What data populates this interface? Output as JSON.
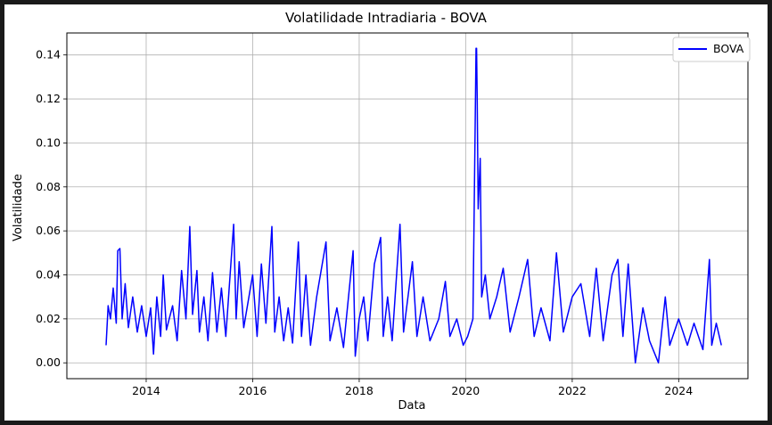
{
  "chart_data": {
    "type": "line",
    "title": "Volatilidade Intradiaria - BOVA",
    "xlabel": "Data",
    "ylabel": "Volatilidade",
    "x_axis": "date",
    "xlim": [
      "2012-07-06",
      "2025-04-20"
    ],
    "ylim": [
      -0.0072,
      0.15
    ],
    "x_ticks": [
      "2014",
      "2016",
      "2018",
      "2020",
      "2022",
      "2024"
    ],
    "y_ticks": [
      "0.00",
      "0.02",
      "0.04",
      "0.06",
      "0.08",
      "0.10",
      "0.12",
      "0.14"
    ],
    "grid": true,
    "legend": {
      "position": "top-right",
      "entries": [
        "BOVA"
      ]
    },
    "series": [
      {
        "name": "BOVA",
        "color": "#0000ff",
        "points": [
          [
            "2013-04-01",
            0.008
          ],
          [
            "2013-04-15",
            0.026
          ],
          [
            "2013-05-01",
            0.02
          ],
          [
            "2013-05-20",
            0.034
          ],
          [
            "2013-06-10",
            0.018
          ],
          [
            "2013-06-20",
            0.051
          ],
          [
            "2013-07-05",
            0.052
          ],
          [
            "2013-07-20",
            0.02
          ],
          [
            "2013-08-10",
            0.036
          ],
          [
            "2013-09-01",
            0.016
          ],
          [
            "2013-10-01",
            0.03
          ],
          [
            "2013-11-01",
            0.014
          ],
          [
            "2013-12-01",
            0.026
          ],
          [
            "2014-01-01",
            0.012
          ],
          [
            "2014-02-01",
            0.025
          ],
          [
            "2014-02-20",
            0.004
          ],
          [
            "2014-03-15",
            0.03
          ],
          [
            "2014-04-10",
            0.012
          ],
          [
            "2014-04-28",
            0.04
          ],
          [
            "2014-05-20",
            0.015
          ],
          [
            "2014-07-01",
            0.026
          ],
          [
            "2014-08-01",
            0.01
          ],
          [
            "2014-09-01",
            0.042
          ],
          [
            "2014-10-01",
            0.02
          ],
          [
            "2014-10-27",
            0.062
          ],
          [
            "2014-11-15",
            0.022
          ],
          [
            "2014-12-15",
            0.042
          ],
          [
            "2015-01-01",
            0.014
          ],
          [
            "2015-02-01",
            0.03
          ],
          [
            "2015-03-01",
            0.01
          ],
          [
            "2015-04-01",
            0.041
          ],
          [
            "2015-05-01",
            0.014
          ],
          [
            "2015-06-01",
            0.034
          ],
          [
            "2015-07-01",
            0.012
          ],
          [
            "2015-08-24",
            0.063
          ],
          [
            "2015-09-10",
            0.02
          ],
          [
            "2015-10-01",
            0.046
          ],
          [
            "2015-11-01",
            0.016
          ],
          [
            "2016-01-01",
            0.04
          ],
          [
            "2016-02-01",
            0.012
          ],
          [
            "2016-03-01",
            0.045
          ],
          [
            "2016-04-01",
            0.018
          ],
          [
            "2016-05-12",
            0.062
          ],
          [
            "2016-06-01",
            0.014
          ],
          [
            "2016-07-01",
            0.03
          ],
          [
            "2016-08-01",
            0.01
          ],
          [
            "2016-09-01",
            0.025
          ],
          [
            "2016-10-01",
            0.009
          ],
          [
            "2016-11-10",
            0.055
          ],
          [
            "2016-12-01",
            0.012
          ],
          [
            "2017-01-01",
            0.04
          ],
          [
            "2017-02-01",
            0.008
          ],
          [
            "2017-03-15",
            0.03
          ],
          [
            "2017-05-18",
            0.055
          ],
          [
            "2017-06-15",
            0.01
          ],
          [
            "2017-08-01",
            0.025
          ],
          [
            "2017-09-15",
            0.007
          ],
          [
            "2017-11-20",
            0.051
          ],
          [
            "2017-12-05",
            0.003
          ],
          [
            "2018-01-01",
            0.02
          ],
          [
            "2018-02-01",
            0.03
          ],
          [
            "2018-03-01",
            0.01
          ],
          [
            "2018-04-15",
            0.045
          ],
          [
            "2018-05-28",
            0.057
          ],
          [
            "2018-06-15",
            0.012
          ],
          [
            "2018-07-15",
            0.03
          ],
          [
            "2018-08-15",
            0.01
          ],
          [
            "2018-10-08",
            0.063
          ],
          [
            "2018-11-01",
            0.014
          ],
          [
            "2019-01-01",
            0.046
          ],
          [
            "2019-02-01",
            0.012
          ],
          [
            "2019-03-15",
            0.03
          ],
          [
            "2019-05-01",
            0.01
          ],
          [
            "2019-07-01",
            0.02
          ],
          [
            "2019-08-15",
            0.037
          ],
          [
            "2019-09-15",
            0.012
          ],
          [
            "2019-11-01",
            0.02
          ],
          [
            "2019-12-15",
            0.008
          ],
          [
            "2020-01-15",
            0.012
          ],
          [
            "2020-02-20",
            0.02
          ],
          [
            "2020-02-26",
            0.055
          ],
          [
            "2020-03-09",
            0.125
          ],
          [
            "2020-03-12",
            0.143
          ],
          [
            "2020-03-16",
            0.143
          ],
          [
            "2020-03-20",
            0.12
          ],
          [
            "2020-03-27",
            0.07
          ],
          [
            "2020-04-10",
            0.093
          ],
          [
            "2020-04-20",
            0.03
          ],
          [
            "2020-05-15",
            0.04
          ],
          [
            "2020-06-15",
            0.02
          ],
          [
            "2020-08-01",
            0.03
          ],
          [
            "2020-09-15",
            0.043
          ],
          [
            "2020-11-01",
            0.014
          ],
          [
            "2021-01-01",
            0.03
          ],
          [
            "2021-03-01",
            0.047
          ],
          [
            "2021-04-15",
            0.012
          ],
          [
            "2021-06-01",
            0.025
          ],
          [
            "2021-08-01",
            0.01
          ],
          [
            "2021-09-15",
            0.05
          ],
          [
            "2021-11-01",
            0.014
          ],
          [
            "2022-01-01",
            0.03
          ],
          [
            "2022-03-01",
            0.036
          ],
          [
            "2022-05-01",
            0.012
          ],
          [
            "2022-06-15",
            0.043
          ],
          [
            "2022-08-01",
            0.01
          ],
          [
            "2022-10-01",
            0.04
          ],
          [
            "2022-11-10",
            0.047
          ],
          [
            "2022-12-15",
            0.012
          ],
          [
            "2023-01-20",
            0.045
          ],
          [
            "2023-03-10",
            0.0
          ],
          [
            "2023-05-01",
            0.025
          ],
          [
            "2023-06-15",
            0.01
          ],
          [
            "2023-08-15",
            0.0
          ],
          [
            "2023-10-01",
            0.03
          ],
          [
            "2023-11-01",
            0.008
          ],
          [
            "2024-01-01",
            0.02
          ],
          [
            "2024-03-01",
            0.008
          ],
          [
            "2024-04-15",
            0.018
          ],
          [
            "2024-06-15",
            0.006
          ],
          [
            "2024-07-30",
            0.047
          ],
          [
            "2024-08-15",
            0.008
          ],
          [
            "2024-09-15",
            0.018
          ],
          [
            "2024-10-20",
            0.008
          ]
        ]
      }
    ]
  }
}
